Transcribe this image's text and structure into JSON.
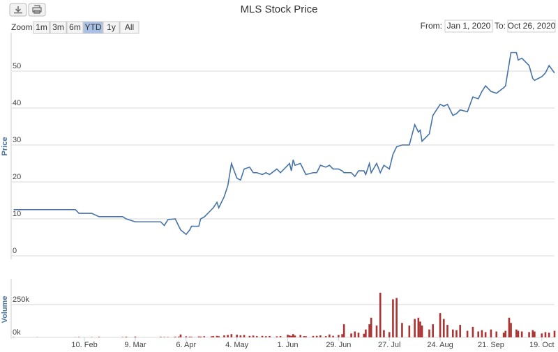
{
  "range_selector": {
    "label": "Zoom",
    "buttons": [
      "1m",
      "3m",
      "6m",
      "YTD",
      "1y",
      "All"
    ],
    "selected": 3,
    "from_label": "From:",
    "from": "Jan 1, 2020",
    "to_label": "To:",
    "to": "Oct 26, 2020"
  },
  "chart_data": {
    "type": "line",
    "title": "MLS Stock Price",
    "y_label": "Price",
    "y2_label": "Volume",
    "x": [
      "2020-01-02",
      "2020-01-15",
      "2020-02-05",
      "2020-02-07",
      "2020-02-14",
      "2020-02-18",
      "2020-03-02",
      "2020-03-04",
      "2020-03-09",
      "2020-03-23",
      "2020-03-25",
      "2020-03-27",
      "2020-03-31",
      "2020-04-02",
      "2020-04-03",
      "2020-04-06",
      "2020-04-08",
      "2020-04-09",
      "2020-04-13",
      "2020-04-14",
      "2020-04-16",
      "2020-04-20",
      "2020-04-21",
      "2020-04-23",
      "2020-04-24",
      "2020-04-27",
      "2020-04-29",
      "2020-05-01",
      "2020-05-04",
      "2020-05-06",
      "2020-05-08",
      "2020-05-11",
      "2020-05-13",
      "2020-05-15",
      "2020-05-18",
      "2020-05-20",
      "2020-05-22",
      "2020-05-26",
      "2020-05-28",
      "2020-06-01",
      "2020-06-02",
      "2020-06-03",
      "2020-06-04",
      "2020-06-05",
      "2020-06-08",
      "2020-06-10",
      "2020-06-11",
      "2020-06-15",
      "2020-06-17",
      "2020-06-19",
      "2020-06-22",
      "2020-06-24",
      "2020-06-26",
      "2020-06-29",
      "2020-07-01",
      "2020-07-02",
      "2020-07-06",
      "2020-07-08",
      "2020-07-10",
      "2020-07-13",
      "2020-07-14",
      "2020-07-16",
      "2020-07-17",
      "2020-07-20",
      "2020-07-22",
      "2020-07-24",
      "2020-07-27",
      "2020-07-29",
      "2020-07-31",
      "2020-08-03",
      "2020-08-07",
      "2020-08-10",
      "2020-08-12",
      "2020-08-13",
      "2020-08-14",
      "2020-08-18",
      "2020-08-20",
      "2020-08-24",
      "2020-08-26",
      "2020-08-28",
      "2020-08-31",
      "2020-09-02",
      "2020-09-04",
      "2020-09-08",
      "2020-09-11",
      "2020-09-14",
      "2020-09-16",
      "2020-09-18",
      "2020-09-21",
      "2020-09-24",
      "2020-09-28",
      "2020-09-29",
      "2020-10-01",
      "2020-10-02",
      "2020-10-05",
      "2020-10-06",
      "2020-10-08",
      "2020-10-12",
      "2020-10-14",
      "2020-10-15",
      "2020-10-19",
      "2020-10-21",
      "2020-10-23",
      "2020-10-26"
    ],
    "series": [
      {
        "color": "#4572a7",
        "values": [
          12.5,
          12.5,
          12.5,
          11.5,
          11.5,
          10.6,
          10.6,
          10,
          9.2,
          9.2,
          8.2,
          9.8,
          10,
          8,
          7,
          5.8,
          7,
          8,
          8,
          10,
          10.5,
          12.5,
          13,
          14.5,
          13,
          16,
          19,
          25,
          21,
          20.5,
          23.5,
          24,
          22.5,
          22.5,
          22,
          22.5,
          22,
          23.5,
          22.5,
          24.5,
          25,
          23,
          26,
          24.5,
          25,
          23,
          22,
          22.5,
          22.5,
          24.5,
          24,
          24.5,
          23.5,
          23.5,
          23,
          22.5,
          22.5,
          21.5,
          23,
          23,
          22,
          25,
          22.5,
          25,
          22.5,
          24.5,
          23.5,
          27.5,
          29.5,
          30,
          30,
          35.5,
          33.5,
          34,
          31,
          33,
          38,
          41,
          40.5,
          41,
          38,
          38.5,
          39.5,
          39,
          43,
          42.5,
          44.5,
          46,
          44.5,
          44,
          45.5,
          46,
          52,
          55,
          55,
          53,
          53.5,
          51.5,
          48,
          47.5,
          48.5,
          49.5,
          51.5,
          49.5
        ]
      },
      {
        "type": "bar",
        "color": "#aa3333",
        "axis": "y2",
        "values": [
          2000,
          1000,
          1000,
          3000,
          2000,
          4000,
          3000,
          5000,
          6000,
          4000,
          3000,
          2000,
          5000,
          6000,
          22000,
          8000,
          5000,
          4000,
          7000,
          6000,
          9000,
          8000,
          10000,
          12000,
          9000,
          15000,
          18000,
          25000,
          20000,
          15000,
          18000,
          12000,
          14000,
          10000,
          12000,
          9000,
          11000,
          8000,
          10000,
          20000,
          15000,
          12000,
          25000,
          14000,
          18000,
          10000,
          9000,
          11000,
          12000,
          15000,
          10000,
          22000,
          12000,
          18000,
          25000,
          100000,
          30000,
          45000,
          35000,
          28000,
          60000,
          100000,
          150000,
          90000,
          340000,
          55000,
          40000,
          290000,
          300000,
          110000,
          90000,
          140000,
          150000,
          120000,
          90000,
          60000,
          100000,
          185000,
          140000,
          95000,
          60000,
          55000,
          95000,
          50000,
          80000,
          45000,
          55000,
          40000,
          60000,
          45000,
          35000,
          50000,
          150000,
          110000,
          60000,
          50000,
          45000,
          40000,
          55000,
          45000,
          30000,
          40000,
          35000,
          50000
        ]
      }
    ],
    "xlim": [
      "2020-01-01",
      "2020-10-26"
    ],
    "xticks": [
      {
        "value": "2020-02-10",
        "label": "10. Feb"
      },
      {
        "value": "2020-03-09",
        "label": "9. Mar"
      },
      {
        "value": "2020-04-06",
        "label": "6. Apr"
      },
      {
        "value": "2020-05-04",
        "label": "4. May"
      },
      {
        "value": "2020-06-01",
        "label": "1. Jun"
      },
      {
        "value": "2020-06-29",
        "label": "29. Jun"
      },
      {
        "value": "2020-07-27",
        "label": "27. Jul"
      },
      {
        "value": "2020-08-24",
        "label": "24. Aug"
      },
      {
        "value": "2020-09-21",
        "label": "21. Sep"
      },
      {
        "value": "2020-10-19",
        "label": "19. Oct"
      }
    ],
    "ylim": [
      0,
      60
    ],
    "yticks": [
      0,
      10,
      20,
      30,
      40,
      50
    ],
    "y2lim": [
      0,
      430000
    ],
    "y2ticks": [
      {
        "value": 0,
        "label": "0k"
      },
      {
        "value": 250000,
        "label": "250k"
      }
    ],
    "grid": true
  }
}
